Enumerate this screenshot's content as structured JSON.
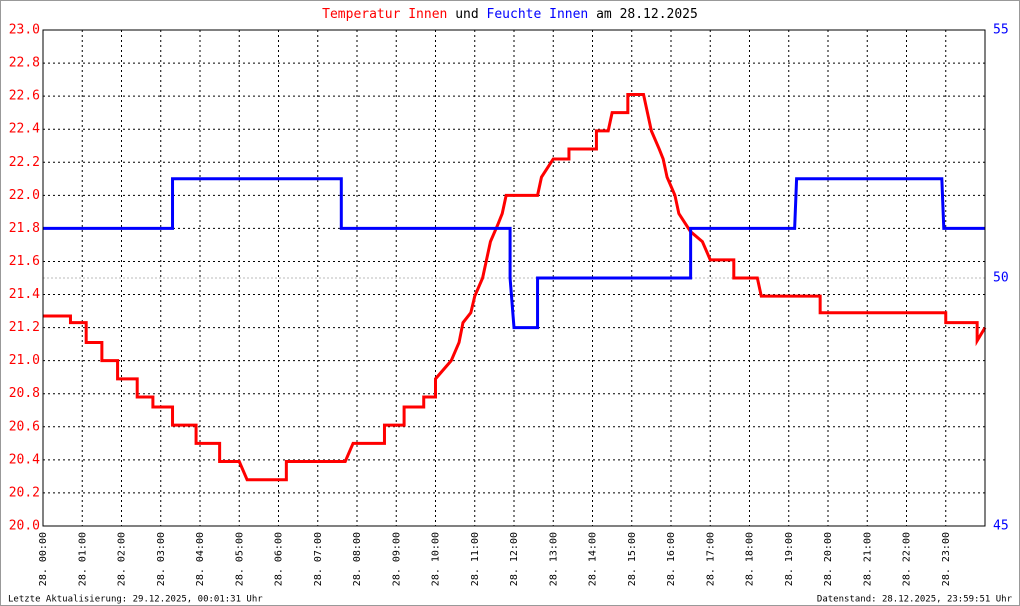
{
  "chart_data": {
    "type": "line",
    "title_join": "und",
    "title_date": "am 28.12.2025",
    "footer_left": "Letzte Aktualisierung: 29.12.2025, 00:01:31 Uhr",
    "footer_right": "Datenstand: 28.12.2025, 23:59:51 Uhr",
    "xlim": [
      0,
      24
    ],
    "xticks": [
      {
        "value": 0,
        "label": "28. 00:00"
      },
      {
        "value": 1,
        "label": "28. 01:00"
      },
      {
        "value": 2,
        "label": "28. 02:00"
      },
      {
        "value": 3,
        "label": "28. 03:00"
      },
      {
        "value": 4,
        "label": "28. 04:00"
      },
      {
        "value": 5,
        "label": "28. 05:00"
      },
      {
        "value": 6,
        "label": "28. 06:00"
      },
      {
        "value": 7,
        "label": "28. 07:00"
      },
      {
        "value": 8,
        "label": "28. 08:00"
      },
      {
        "value": 9,
        "label": "28. 09:00"
      },
      {
        "value": 10,
        "label": "28. 10:00"
      },
      {
        "value": 11,
        "label": "28. 11:00"
      },
      {
        "value": 12,
        "label": "28. 12:00"
      },
      {
        "value": 13,
        "label": "28. 13:00"
      },
      {
        "value": 14,
        "label": "28. 14:00"
      },
      {
        "value": 15,
        "label": "28. 15:00"
      },
      {
        "value": 16,
        "label": "28. 16:00"
      },
      {
        "value": 17,
        "label": "28. 17:00"
      },
      {
        "value": 18,
        "label": "28. 18:00"
      },
      {
        "value": 19,
        "label": "28. 19:00"
      },
      {
        "value": 20,
        "label": "28. 20:00"
      },
      {
        "value": 21,
        "label": "28. 21:00"
      },
      {
        "value": 22,
        "label": "28. 22:00"
      },
      {
        "value": 23,
        "label": "28. 23:00"
      }
    ],
    "ylim": [
      20,
      23
    ],
    "yticks": [
      {
        "value": 20,
        "label": "20.0"
      },
      20.2,
      20.4,
      20.6,
      20.8,
      {
        "value": 21,
        "label": "21.0"
      },
      21.2,
      21.4,
      21.6,
      21.8,
      {
        "value": 22,
        "label": "22.0"
      },
      22.2,
      22.4,
      22.6,
      22.8,
      {
        "value": 23,
        "label": "23.0"
      }
    ],
    "y2lim": [
      45,
      55
    ],
    "y2ticks": [
      45,
      50,
      55
    ],
    "grid": true,
    "series": [
      {
        "name": "Temperatur Innen",
        "color": "#ff0000",
        "x": [
          0,
          0.7,
          0.7,
          1.1,
          1.1,
          1.5,
          1.5,
          1.9,
          1.9,
          2.4,
          2.4,
          2.8,
          2.8,
          3.3,
          3.3,
          3.9,
          3.9,
          4.5,
          4.5,
          5.0,
          5.2,
          6.2,
          6.2,
          7.7,
          7.9,
          8.7,
          8.7,
          9.2,
          9.2,
          9.7,
          9.7,
          10.0,
          10.0,
          10.4,
          10.6,
          10.7,
          10.9,
          11.0,
          11.2,
          11.3,
          11.4,
          11.6,
          11.7,
          11.8,
          12.6,
          12.7,
          13.0,
          13.4,
          13.4,
          14.1,
          14.1,
          14.4,
          14.5,
          14.9,
          14.9,
          15.3,
          15.4,
          15.5,
          15.7,
          15.8,
          15.9,
          16.1,
          16.2,
          16.5,
          16.8,
          17.0,
          17.6,
          17.6,
          18.2,
          18.3,
          19.8,
          19.8,
          23.0,
          23.0,
          23.8,
          23.8,
          24
        ],
        "values": [
          21.27,
          21.27,
          21.23,
          21.23,
          21.11,
          21.11,
          21.0,
          21.0,
          20.89,
          20.89,
          20.78,
          20.78,
          20.72,
          20.72,
          20.61,
          20.61,
          20.5,
          20.5,
          20.39,
          20.39,
          20.28,
          20.28,
          20.39,
          20.39,
          20.5,
          20.5,
          20.61,
          20.61,
          20.72,
          20.72,
          20.78,
          20.78,
          20.89,
          21.0,
          21.11,
          21.23,
          21.29,
          21.39,
          21.5,
          21.61,
          21.72,
          21.83,
          21.89,
          22.0,
          22.0,
          22.11,
          22.22,
          22.22,
          22.28,
          22.28,
          22.39,
          22.39,
          22.5,
          22.5,
          22.61,
          22.61,
          22.5,
          22.39,
          22.28,
          22.22,
          22.11,
          22.0,
          21.89,
          21.78,
          21.72,
          21.61,
          21.61,
          21.5,
          21.5,
          21.39,
          21.39,
          21.29,
          21.29,
          21.23,
          21.23,
          21.12,
          21.2
        ]
      },
      {
        "name": "Feuchte Innen",
        "color": "#0000ff",
        "axis": "y2",
        "x": [
          0,
          3.3,
          3.3,
          7.6,
          7.6,
          11.9,
          11.9,
          12.0,
          12.6,
          12.6,
          16.5,
          16.5,
          19.15,
          19.2,
          22.9,
          22.95,
          24
        ],
        "values": [
          51,
          51,
          52,
          52,
          51,
          51,
          50,
          49,
          49,
          50,
          50,
          51,
          51,
          52,
          52,
          51,
          51
        ]
      }
    ]
  }
}
